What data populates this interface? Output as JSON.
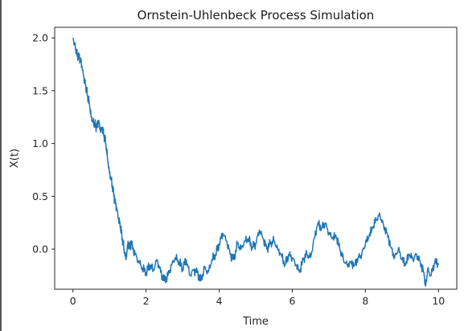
{
  "chart_data": {
    "type": "line",
    "title": "Ornstein-Uhlenbeck Process Simulation",
    "xlabel": "Time",
    "ylabel": "X(t)",
    "xlim": [
      -0.5,
      10.5
    ],
    "ylim": [
      -0.38,
      2.1
    ],
    "xticks": [
      0,
      2,
      4,
      6,
      8,
      10
    ],
    "xtick_labels": [
      "0",
      "2",
      "4",
      "6",
      "8",
      "10"
    ],
    "yticks": [
      0.0,
      0.5,
      1.0,
      1.5,
      2.0
    ],
    "ytick_labels": [
      "0.0",
      "0.5",
      "1.0",
      "1.5",
      "2.0"
    ],
    "grid": false,
    "series": [
      {
        "color": "#1f77b4",
        "points": [
          [
            0.0,
            2.0
          ],
          [
            0.05,
            1.93
          ],
          [
            0.1,
            1.85
          ],
          [
            0.15,
            1.82
          ],
          [
            0.2,
            1.8
          ],
          [
            0.25,
            1.72
          ],
          [
            0.3,
            1.62
          ],
          [
            0.35,
            1.55
          ],
          [
            0.4,
            1.45
          ],
          [
            0.45,
            1.38
          ],
          [
            0.5,
            1.25
          ],
          [
            0.55,
            1.2
          ],
          [
            0.6,
            1.18
          ],
          [
            0.65,
            1.15
          ],
          [
            0.7,
            1.22
          ],
          [
            0.75,
            1.12
          ],
          [
            0.8,
            1.15
          ],
          [
            0.85,
            1.08
          ],
          [
            0.9,
            1.0
          ],
          [
            0.95,
            0.85
          ],
          [
            1.0,
            0.72
          ],
          [
            1.05,
            0.65
          ],
          [
            1.1,
            0.55
          ],
          [
            1.15,
            0.45
          ],
          [
            1.2,
            0.38
          ],
          [
            1.25,
            0.28
          ],
          [
            1.3,
            0.22
          ],
          [
            1.35,
            0.1
          ],
          [
            1.4,
            0.0
          ],
          [
            1.45,
            -0.1
          ],
          [
            1.5,
            0.05
          ],
          [
            1.55,
            0.02
          ],
          [
            1.6,
            0.05
          ],
          [
            1.7,
            -0.05
          ],
          [
            1.8,
            -0.12
          ],
          [
            1.9,
            -0.18
          ],
          [
            2.0,
            -0.22
          ],
          [
            2.1,
            -0.15
          ],
          [
            2.2,
            -0.2
          ],
          [
            2.3,
            -0.1
          ],
          [
            2.4,
            -0.22
          ],
          [
            2.5,
            -0.3
          ],
          [
            2.6,
            -0.25
          ],
          [
            2.7,
            -0.15
          ],
          [
            2.8,
            -0.08
          ],
          [
            2.9,
            -0.12
          ],
          [
            3.0,
            -0.18
          ],
          [
            3.1,
            -0.1
          ],
          [
            3.2,
            -0.25
          ],
          [
            3.3,
            -0.2
          ],
          [
            3.4,
            -0.22
          ],
          [
            3.5,
            -0.3
          ],
          [
            3.6,
            -0.18
          ],
          [
            3.7,
            -0.22
          ],
          [
            3.8,
            -0.1
          ],
          [
            3.9,
            -0.05
          ],
          [
            4.0,
            0.05
          ],
          [
            4.1,
            0.15
          ],
          [
            4.2,
            0.08
          ],
          [
            4.3,
            -0.05
          ],
          [
            4.4,
            -0.1
          ],
          [
            4.5,
            0.05
          ],
          [
            4.6,
            0.0
          ],
          [
            4.7,
            0.08
          ],
          [
            4.8,
            0.1
          ],
          [
            4.9,
            0.02
          ],
          [
            5.0,
            0.05
          ],
          [
            5.1,
            0.18
          ],
          [
            5.2,
            0.1
          ],
          [
            5.3,
            0.0
          ],
          [
            5.4,
            0.05
          ],
          [
            5.5,
            0.08
          ],
          [
            5.6,
            0.0
          ],
          [
            5.7,
            -0.05
          ],
          [
            5.8,
            -0.15
          ],
          [
            5.9,
            -0.05
          ],
          [
            6.0,
            -0.08
          ],
          [
            6.1,
            -0.15
          ],
          [
            6.2,
            -0.22
          ],
          [
            6.3,
            -0.1
          ],
          [
            6.4,
            -0.05
          ],
          [
            6.5,
            -0.08
          ],
          [
            6.6,
            0.1
          ],
          [
            6.7,
            0.25
          ],
          [
            6.8,
            0.2
          ],
          [
            6.9,
            0.25
          ],
          [
            7.0,
            0.15
          ],
          [
            7.1,
            0.1
          ],
          [
            7.2,
            0.12
          ],
          [
            7.3,
            0.0
          ],
          [
            7.4,
            -0.1
          ],
          [
            7.5,
            -0.15
          ],
          [
            7.6,
            -0.12
          ],
          [
            7.7,
            -0.15
          ],
          [
            7.8,
            -0.08
          ],
          [
            7.9,
            -0.05
          ],
          [
            8.0,
            0.05
          ],
          [
            8.1,
            0.12
          ],
          [
            8.2,
            0.2
          ],
          [
            8.3,
            0.28
          ],
          [
            8.4,
            0.32
          ],
          [
            8.5,
            0.22
          ],
          [
            8.6,
            0.15
          ],
          [
            8.7,
            0.02
          ],
          [
            8.8,
            -0.08
          ],
          [
            8.9,
            0.0
          ],
          [
            9.0,
            -0.1
          ],
          [
            9.1,
            -0.15
          ],
          [
            9.2,
            -0.05
          ],
          [
            9.3,
            -0.1
          ],
          [
            9.4,
            -0.05
          ],
          [
            9.5,
            -0.12
          ],
          [
            9.6,
            -0.22
          ],
          [
            9.65,
            -0.35
          ],
          [
            9.7,
            -0.2
          ],
          [
            9.8,
            -0.25
          ],
          [
            9.9,
            -0.12
          ],
          [
            10.0,
            -0.15
          ]
        ]
      }
    ]
  }
}
